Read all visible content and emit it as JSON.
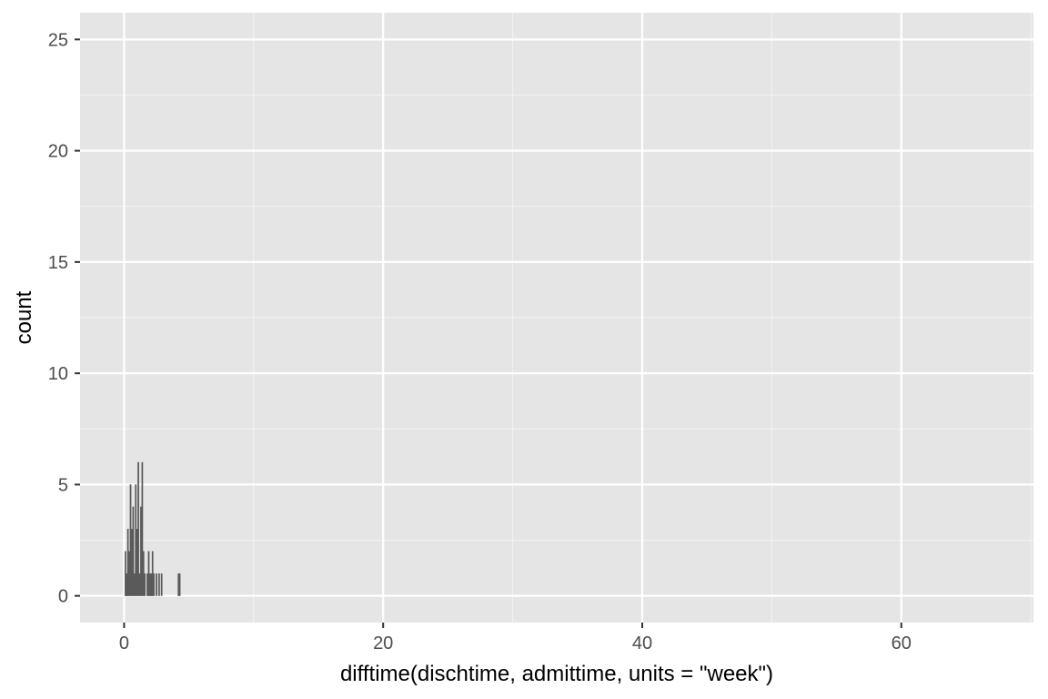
{
  "chart_data": {
    "type": "bar",
    "title": "",
    "xlabel": "difftime(dischtime, admittime, units = \"week\")",
    "ylabel": "count",
    "xlim": [
      -3.4,
      70.2
    ],
    "ylim": [
      -1.2,
      26.2
    ],
    "x_ticks": [
      0,
      20,
      40,
      60
    ],
    "x_tick_labels": [
      "0",
      "20",
      "40",
      "60"
    ],
    "y_ticks": [
      0,
      5,
      10,
      15,
      20,
      25
    ],
    "y_tick_labels": [
      "0",
      "5",
      "10",
      "15",
      "20",
      "25"
    ],
    "grid": true,
    "legend": "none",
    "bar_width": 0.1,
    "bars": [
      {
        "x": 0.1,
        "count": 2
      },
      {
        "x": 0.2,
        "count": 1
      },
      {
        "x": 0.3,
        "count": 3
      },
      {
        "x": 0.4,
        "count": 2
      },
      {
        "x": 0.5,
        "count": 5
      },
      {
        "x": 0.6,
        "count": 3
      },
      {
        "x": 0.7,
        "count": 4
      },
      {
        "x": 0.8,
        "count": 1
      },
      {
        "x": 0.9,
        "count": 5
      },
      {
        "x": 1.0,
        "count": 3
      },
      {
        "x": 1.1,
        "count": 6
      },
      {
        "x": 1.2,
        "count": 1
      },
      {
        "x": 1.3,
        "count": 4
      },
      {
        "x": 1.4,
        "count": 6
      },
      {
        "x": 1.5,
        "count": 2
      },
      {
        "x": 1.6,
        "count": 1
      },
      {
        "x": 1.8,
        "count": 1
      },
      {
        "x": 1.9,
        "count": 2
      },
      {
        "x": 2.0,
        "count": 1
      },
      {
        "x": 2.1,
        "count": 1
      },
      {
        "x": 2.2,
        "count": 2
      },
      {
        "x": 2.3,
        "count": 1
      },
      {
        "x": 2.5,
        "count": 1
      },
      {
        "x": 2.7,
        "count": 1
      },
      {
        "x": 2.9,
        "count": 1
      },
      {
        "x": 4.2,
        "count": 1
      },
      {
        "x": 4.3,
        "count": 1
      }
    ],
    "colors": {
      "panel_background": "#e5e5e5",
      "grid_major": "#ffffff",
      "grid_minor": "#f2f2f2",
      "bar_fill": "#595959",
      "axis_text": "#4d4d4d",
      "axis_title": "#000000",
      "tick": "#333333"
    }
  }
}
